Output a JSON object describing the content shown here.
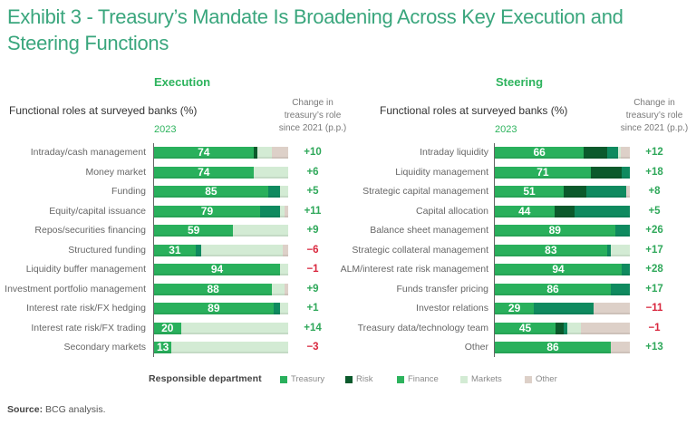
{
  "title": "Exhibit 3 - Treasury’s Mandate Is Broadening Across Key Execution and Steering Functions",
  "legend": {
    "title": "Responsible department",
    "items": [
      {
        "name": "Treasury",
        "color": "#29b05c"
      },
      {
        "name": "Risk",
        "color": "#0b5a2c"
      },
      {
        "name": "Finance",
        "color": "#0f8a5f"
      },
      {
        "name": "Markets",
        "color": "#d3ebd4"
      },
      {
        "name": "Other",
        "color": "#ddd0c8"
      }
    ]
  },
  "change_colors": {
    "positive": "#2fa85a",
    "negative": "#d9263d"
  },
  "source": {
    "label": "Source:",
    "text": "BCG analysis."
  },
  "chart_data": [
    {
      "type": "bar",
      "orientation": "horizontal",
      "stacked": true,
      "title": "Execution",
      "subtitle": "Functional roles at surveyed banks (%)",
      "year_label": "2023",
      "change_header_lines": [
        "Change in",
        "treasury’s role",
        "since 2021 (p.p.)"
      ],
      "xlim": [
        0,
        100
      ],
      "grid": false,
      "legend_position": "bottom",
      "categories": [
        "Intraday/cash management",
        "Money market",
        "Funding",
        "Equity/capital issuance",
        "Repos/securities financing",
        "Structured funding",
        "Liquidity buffer management",
        "Investment portfolio management",
        "Interest rate risk/FX hedging",
        "Interest rate risk/FX trading",
        "Secondary markets"
      ],
      "series": [
        {
          "name": "Treasury",
          "values": [
            74,
            74,
            85,
            79,
            59,
            31,
            94,
            88,
            89,
            20,
            13
          ]
        },
        {
          "name": "Risk",
          "values": [
            3,
            0,
            0,
            0,
            0,
            0,
            0,
            0,
            0,
            0,
            0
          ]
        },
        {
          "name": "Finance",
          "values": [
            0,
            0,
            9,
            15,
            0,
            4,
            0,
            0,
            5,
            0,
            0
          ]
        },
        {
          "name": "Markets",
          "values": [
            11,
            26,
            6,
            3,
            41,
            61,
            6,
            9,
            6,
            80,
            87
          ]
        },
        {
          "name": "Other",
          "values": [
            12,
            0,
            0,
            3,
            0,
            4,
            0,
            3,
            0,
            0,
            0
          ]
        }
      ],
      "change_labels": [
        "+10",
        "+6",
        "+5",
        "+11",
        "+9",
        "−6",
        "−1",
        "+9",
        "+1",
        "+14",
        "−3"
      ]
    },
    {
      "type": "bar",
      "orientation": "horizontal",
      "stacked": true,
      "title": "Steering",
      "subtitle": "Functional roles at surveyed banks (%)",
      "year_label": "2023",
      "change_header_lines": [
        "Change in",
        "treasury’s role",
        "since 2021 (p.p.)"
      ],
      "xlim": [
        0,
        100
      ],
      "grid": false,
      "legend_position": "bottom",
      "categories": [
        "Intraday liquidity",
        "Liquidity management",
        "Strategic capital management",
        "Capital allocation",
        "Balance sheet management",
        "Strategic collateral management",
        "ALM/interest rate risk management",
        "Funds transfer pricing",
        "Investor relations",
        "Treasury data/technology team",
        "Other"
      ],
      "series": [
        {
          "name": "Treasury",
          "values": [
            66,
            71,
            51,
            44,
            89,
            83,
            94,
            86,
            29,
            45,
            86
          ]
        },
        {
          "name": "Risk",
          "values": [
            17,
            23,
            17,
            15,
            0,
            0,
            0,
            0,
            0,
            6,
            0
          ]
        },
        {
          "name": "Finance",
          "values": [
            8,
            6,
            29,
            41,
            11,
            3,
            6,
            14,
            44,
            3,
            0
          ]
        },
        {
          "name": "Markets",
          "values": [
            2,
            0,
            0,
            0,
            0,
            14,
            0,
            0,
            0,
            10,
            0
          ]
        },
        {
          "name": "Other",
          "values": [
            7,
            0,
            3,
            0,
            0,
            0,
            0,
            0,
            27,
            36,
            14
          ]
        }
      ],
      "change_labels": [
        "+12",
        "+18",
        "+8",
        "+5",
        "+26",
        "+17",
        "+28",
        "+17",
        "−11",
        "−1",
        "+13"
      ]
    }
  ]
}
